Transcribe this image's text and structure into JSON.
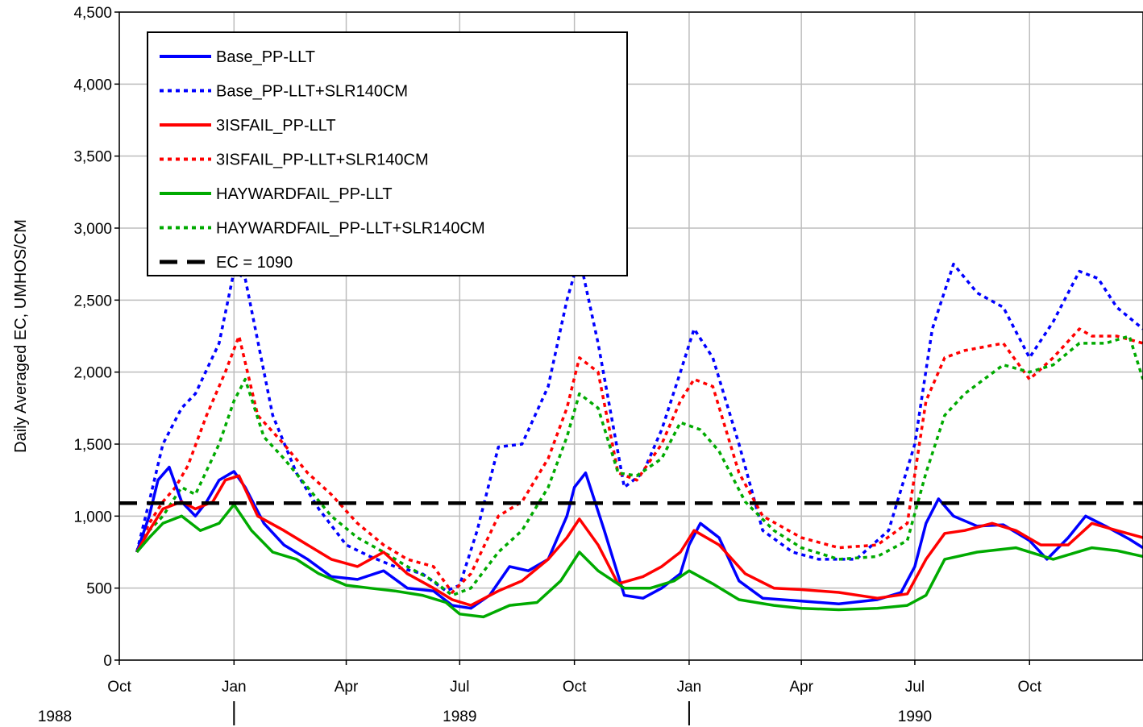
{
  "chart_data": {
    "type": "line",
    "ylabel": "Daily Averaged EC, UMHOS/CM",
    "ylim": [
      0,
      4500
    ],
    "yticks": [
      0,
      500,
      1000,
      1500,
      2000,
      2500,
      3000,
      3500,
      4000,
      4500
    ],
    "ytick_labels": [
      "0",
      "500",
      "1,000",
      "1,500",
      "2,000",
      "2,500",
      "3,000",
      "3,500",
      "4,000",
      "4,500"
    ],
    "x_range": [
      "1988-10-01",
      "1990-12-31"
    ],
    "xticks": [
      "1988-10-01",
      "1989-01-01",
      "1989-04-01",
      "1989-07-01",
      "1989-10-01",
      "1990-01-01",
      "1990-04-01",
      "1990-07-01",
      "1990-10-01"
    ],
    "xtick_labels": [
      "Oct",
      "Jan",
      "Apr",
      "Jul",
      "Oct",
      "Jan",
      "Apr",
      "Jul",
      "Oct"
    ],
    "year_labels": [
      {
        "label": "1988",
        "date": "1988-10-01"
      },
      {
        "label": "1989",
        "date": "1989-07-01"
      },
      {
        "label": "1990",
        "date": "1990-07-01"
      }
    ],
    "year_dividers": [
      "1989-01-01",
      "1990-01-01"
    ],
    "grid": true,
    "legend_position": "top-left",
    "series": [
      {
        "name": "Base_PP-LLT",
        "color": "#0000ff",
        "style": "solid",
        "x": [
          "1988-10-15",
          "1988-10-25",
          "1988-11-01",
          "1988-11-10",
          "1988-11-20",
          "1988-12-01",
          "1988-12-10",
          "1988-12-20",
          "1989-01-01",
          "1989-01-10",
          "1989-01-25",
          "1989-02-10",
          "1989-03-01",
          "1989-03-20",
          "1989-04-10",
          "1989-05-01",
          "1989-05-20",
          "1989-06-10",
          "1989-06-25",
          "1989-07-10",
          "1989-07-25",
          "1989-08-10",
          "1989-08-25",
          "1989-09-10",
          "1989-09-25",
          "1989-10-01",
          "1989-10-10",
          "1989-10-25",
          "1989-11-10",
          "1989-11-25",
          "1989-12-10",
          "1989-12-25",
          "1990-01-01",
          "1990-01-10",
          "1990-01-25",
          "1990-02-10",
          "1990-03-01",
          "1990-04-01",
          "1990-05-01",
          "1990-06-01",
          "1990-06-20",
          "1990-07-01",
          "1990-07-10",
          "1990-07-20",
          "1990-08-01",
          "1990-08-20",
          "1990-09-10",
          "1990-10-01",
          "1990-10-15",
          "1990-11-01",
          "1990-11-15",
          "1990-12-01",
          "1990-12-20",
          "1990-12-31"
        ],
        "y": [
          750,
          1000,
          1250,
          1340,
          1100,
          1000,
          1100,
          1250,
          1310,
          1200,
          950,
          800,
          700,
          580,
          560,
          620,
          500,
          480,
          380,
          360,
          450,
          650,
          620,
          700,
          1000,
          1200,
          1300,
          900,
          450,
          430,
          500,
          600,
          800,
          950,
          850,
          550,
          430,
          410,
          390,
          420,
          470,
          650,
          950,
          1120,
          1000,
          930,
          940,
          830,
          700,
          850,
          1000,
          930,
          840,
          780
        ]
      },
      {
        "name": "Base_PP-LLT+SLR140CM",
        "color": "#0000ff",
        "style": "dotted",
        "x": [
          "1988-10-15",
          "1988-10-25",
          "1988-11-05",
          "1988-11-20",
          "1988-12-01",
          "1988-12-20",
          "1989-01-01",
          "1989-01-10",
          "1989-02-01",
          "1989-02-20",
          "1989-03-10",
          "1989-04-01",
          "1989-04-20",
          "1989-05-10",
          "1989-06-01",
          "1989-06-20",
          "1989-07-01",
          "1989-07-15",
          "1989-08-01",
          "1989-08-20",
          "1989-09-10",
          "1989-09-25",
          "1989-10-05",
          "1989-10-20",
          "1989-11-10",
          "1989-11-25",
          "1989-12-10",
          "1989-12-25",
          "1990-01-05",
          "1990-01-20",
          "1990-02-10",
          "1990-03-01",
          "1990-03-25",
          "1990-04-15",
          "1990-05-15",
          "1990-06-10",
          "1990-07-01",
          "1990-07-15",
          "1990-08-01",
          "1990-08-20",
          "1990-09-10",
          "1990-10-01",
          "1990-10-20",
          "1990-11-10",
          "1990-11-25",
          "1990-12-10",
          "1990-12-31"
        ],
        "y": [
          750,
          1100,
          1500,
          1750,
          1850,
          2200,
          2700,
          2650,
          1700,
          1300,
          1050,
          800,
          720,
          650,
          600,
          480,
          520,
          900,
          1480,
          1500,
          1900,
          2500,
          2800,
          2200,
          1200,
          1300,
          1600,
          2000,
          2300,
          2100,
          1500,
          900,
          750,
          700,
          700,
          900,
          1500,
          2300,
          2750,
          2550,
          2450,
          2100,
          2350,
          2700,
          2650,
          2450,
          2300
        ]
      },
      {
        "name": "3ISFAIL_PP-LLT",
        "color": "#ff0000",
        "style": "solid",
        "x": [
          "1988-10-15",
          "1988-10-25",
          "1988-11-05",
          "1988-11-20",
          "1988-12-01",
          "1988-12-15",
          "1988-12-25",
          "1989-01-05",
          "1989-01-20",
          "1989-02-10",
          "1989-03-01",
          "1989-03-20",
          "1989-04-10",
          "1989-05-01",
          "1989-05-20",
          "1989-06-10",
          "1989-06-25",
          "1989-07-10",
          "1989-08-01",
          "1989-08-20",
          "1989-09-10",
          "1989-09-25",
          "1989-10-05",
          "1989-10-20",
          "1989-11-05",
          "1989-11-25",
          "1989-12-10",
          "1989-12-25",
          "1990-01-05",
          "1990-01-25",
          "1990-02-15",
          "1990-03-10",
          "1990-04-01",
          "1990-05-01",
          "1990-06-01",
          "1990-06-25",
          "1990-07-10",
          "1990-07-25",
          "1990-08-10",
          "1990-09-01",
          "1990-09-20",
          "1990-10-10",
          "1990-11-01",
          "1990-11-20",
          "1990-12-10",
          "1990-12-31"
        ],
        "y": [
          750,
          900,
          1050,
          1100,
          1050,
          1100,
          1250,
          1280,
          1000,
          900,
          800,
          700,
          650,
          750,
          600,
          500,
          420,
          380,
          480,
          550,
          700,
          850,
          980,
          800,
          530,
          580,
          650,
          750,
          900,
          800,
          600,
          500,
          490,
          470,
          430,
          460,
          700,
          880,
          900,
          950,
          900,
          800,
          800,
          950,
          900,
          850
        ]
      },
      {
        "name": "3ISFAIL_PP-LLT+SLR140CM",
        "color": "#ff0000",
        "style": "dotted",
        "x": [
          "1988-10-15",
          "1988-10-25",
          "1988-11-05",
          "1988-11-15",
          "1988-11-25",
          "1988-12-10",
          "1988-12-25",
          "1989-01-05",
          "1989-01-20",
          "1989-02-10",
          "1989-03-01",
          "1989-03-20",
          "1989-04-10",
          "1989-05-01",
          "1989-05-20",
          "1989-06-10",
          "1989-06-25",
          "1989-07-10",
          "1989-08-01",
          "1989-08-20",
          "1989-09-10",
          "1989-09-25",
          "1989-10-05",
          "1989-10-20",
          "1989-11-05",
          "1989-11-20",
          "1989-12-10",
          "1989-12-25",
          "1990-01-05",
          "1990-01-20",
          "1990-02-10",
          "1990-03-01",
          "1990-04-01",
          "1990-05-01",
          "1990-06-01",
          "1990-06-25",
          "1990-07-10",
          "1990-07-25",
          "1990-08-10",
          "1990-09-10",
          "1990-10-01",
          "1990-10-20",
          "1990-11-10",
          "1990-11-20",
          "1990-12-10",
          "1990-12-31"
        ],
        "y": [
          750,
          950,
          1100,
          1200,
          1350,
          1700,
          2000,
          2250,
          1700,
          1500,
          1300,
          1150,
          950,
          800,
          700,
          650,
          470,
          600,
          1000,
          1100,
          1400,
          1750,
          2100,
          2000,
          1300,
          1250,
          1500,
          1800,
          1950,
          1900,
          1300,
          1000,
          850,
          780,
          800,
          950,
          1800,
          2100,
          2150,
          2200,
          1950,
          2100,
          2300,
          2250,
          2250,
          2200
        ]
      },
      {
        "name": "HAYWARDFAIL_PP-LLT",
        "color": "#00aa00",
        "style": "solid",
        "x": [
          "1988-10-15",
          "1988-10-25",
          "1988-11-05",
          "1988-11-20",
          "1988-12-05",
          "1988-12-20",
          "1989-01-01",
          "1989-01-15",
          "1989-02-01",
          "1989-02-20",
          "1989-03-10",
          "1989-04-01",
          "1989-04-20",
          "1989-05-10",
          "1989-06-01",
          "1989-06-20",
          "1989-07-01",
          "1989-07-20",
          "1989-08-10",
          "1989-09-01",
          "1989-09-20",
          "1989-10-05",
          "1989-10-20",
          "1989-11-10",
          "1989-12-01",
          "1989-12-20",
          "1990-01-01",
          "1990-01-20",
          "1990-02-10",
          "1990-03-10",
          "1990-04-01",
          "1990-05-01",
          "1990-06-01",
          "1990-06-25",
          "1990-07-10",
          "1990-07-25",
          "1990-08-20",
          "1990-09-20",
          "1990-10-20",
          "1990-11-20",
          "1990-12-10",
          "1990-12-31"
        ],
        "y": [
          750,
          850,
          950,
          1000,
          900,
          950,
          1080,
          900,
          750,
          700,
          600,
          520,
          500,
          480,
          450,
          400,
          320,
          300,
          380,
          400,
          550,
          750,
          620,
          500,
          500,
          550,
          620,
          530,
          420,
          380,
          360,
          350,
          360,
          380,
          450,
          700,
          750,
          780,
          700,
          780,
          760,
          720
        ]
      },
      {
        "name": "HAYWARDFAIL_PP-LLT+SLR140CM",
        "color": "#00aa00",
        "style": "dotted",
        "x": [
          "1988-10-15",
          "1988-10-25",
          "1988-11-05",
          "1988-11-20",
          "1988-12-01",
          "1988-12-20",
          "1989-01-01",
          "1989-01-10",
          "1989-01-25",
          "1989-02-10",
          "1989-03-01",
          "1989-03-20",
          "1989-04-10",
          "1989-05-01",
          "1989-05-20",
          "1989-06-10",
          "1989-06-25",
          "1989-07-10",
          "1989-08-01",
          "1989-08-20",
          "1989-09-10",
          "1989-09-25",
          "1989-10-05",
          "1989-10-20",
          "1989-11-05",
          "1989-11-20",
          "1989-12-10",
          "1989-12-25",
          "1990-01-10",
          "1990-01-25",
          "1990-02-15",
          "1990-03-10",
          "1990-04-01",
          "1990-05-01",
          "1990-06-01",
          "1990-06-25",
          "1990-07-10",
          "1990-07-25",
          "1990-08-10",
          "1990-09-10",
          "1990-10-01",
          "1990-10-20",
          "1990-11-10",
          "1990-12-01",
          "1990-12-20",
          "1990-12-31"
        ],
        "y": [
          750,
          900,
          1000,
          1200,
          1150,
          1500,
          1800,
          1950,
          1550,
          1400,
          1200,
          1000,
          850,
          750,
          650,
          550,
          450,
          500,
          750,
          900,
          1200,
          1550,
          1850,
          1750,
          1300,
          1280,
          1400,
          1650,
          1600,
          1450,
          1100,
          900,
          780,
          700,
          720,
          830,
          1300,
          1700,
          1850,
          2050,
          2000,
          2050,
          2200,
          2200,
          2250,
          1950
        ]
      },
      {
        "name": "EC = 1090",
        "color": "#000000",
        "style": "dashed",
        "x": [
          "1988-10-01",
          "1990-12-31"
        ],
        "y": [
          1090,
          1090
        ]
      }
    ]
  }
}
